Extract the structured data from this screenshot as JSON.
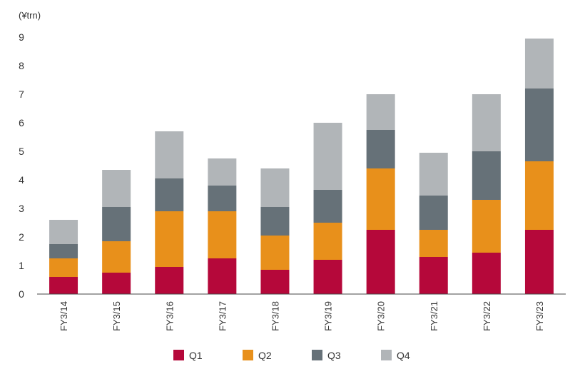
{
  "chart_data": {
    "type": "bar",
    "stacked": true,
    "unit_label": "(¥trn)",
    "title": "",
    "xlabel": "",
    "ylabel": "",
    "ylim": [
      0,
      9
    ],
    "yticks": [
      0,
      1,
      2,
      3,
      4,
      5,
      6,
      7,
      8,
      9
    ],
    "grid": false,
    "legend_position": "bottom",
    "categories": [
      "FY3/14",
      "FY3/15",
      "FY3/16",
      "FY3/17",
      "FY3/18",
      "FY3/19",
      "FY3/20",
      "FY3/21",
      "FY3/22",
      "FY3/23"
    ],
    "series": [
      {
        "name": "Q1",
        "color": "#B5083A",
        "values": [
          0.6,
          0.75,
          0.95,
          1.25,
          0.85,
          1.2,
          2.25,
          1.3,
          1.45,
          2.25
        ]
      },
      {
        "name": "Q2",
        "color": "#E8901B",
        "values": [
          0.65,
          1.1,
          1.95,
          1.65,
          1.2,
          1.3,
          2.15,
          0.95,
          1.85,
          2.4
        ]
      },
      {
        "name": "Q3",
        "color": "#667178",
        "values": [
          0.5,
          1.2,
          1.15,
          0.9,
          1.0,
          1.15,
          1.35,
          1.2,
          1.7,
          2.55
        ]
      },
      {
        "name": "Q4",
        "color": "#B1B5B8",
        "values": [
          0.85,
          1.3,
          1.65,
          0.95,
          1.35,
          2.35,
          1.25,
          1.5,
          2.0,
          1.75
        ]
      }
    ]
  }
}
